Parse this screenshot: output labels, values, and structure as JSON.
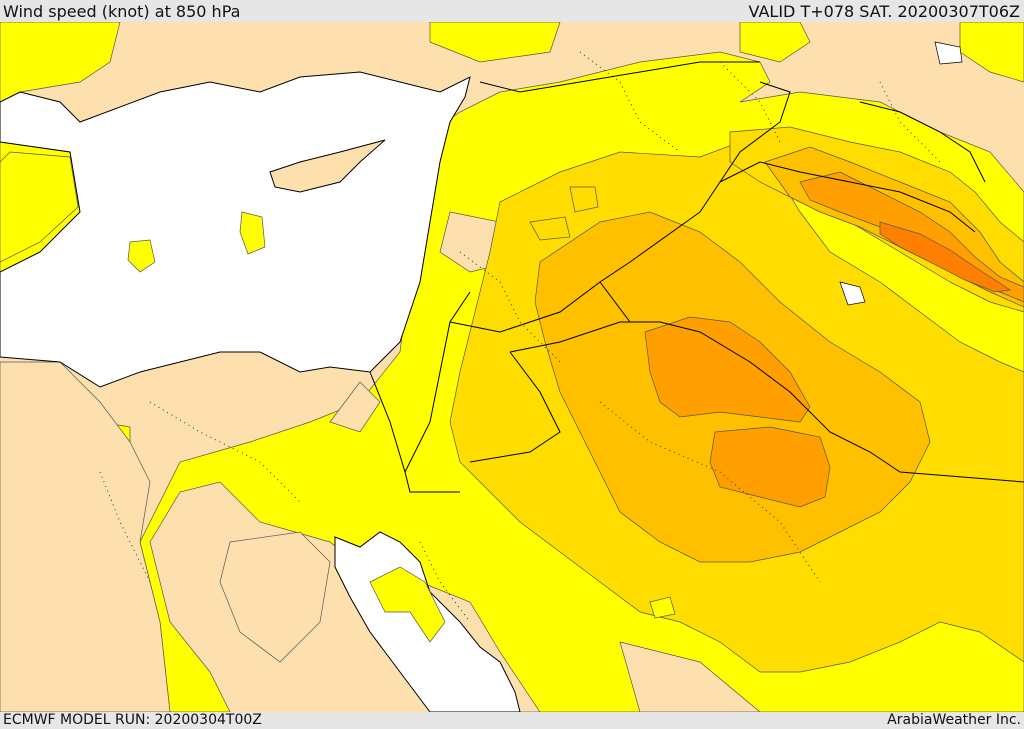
{
  "header": {
    "title": "Wind speed (knot) at 850 hPa",
    "valid": "VALID T+078 SAT. 20200307T06Z"
  },
  "footer": {
    "model_run": "ECMWF MODEL RUN: 20200304T00Z",
    "brand": "ArabiaWeather Inc."
  },
  "colors": {
    "land_calm": "#fde0ad",
    "sea": "#ffffff",
    "band_1": "#ffff00",
    "band_2": "#ffdd00",
    "band_3": "#ffc000",
    "band_4": "#ffa000",
    "band_5": "#ff8000",
    "contour": "#555555",
    "border": "#000000"
  }
}
